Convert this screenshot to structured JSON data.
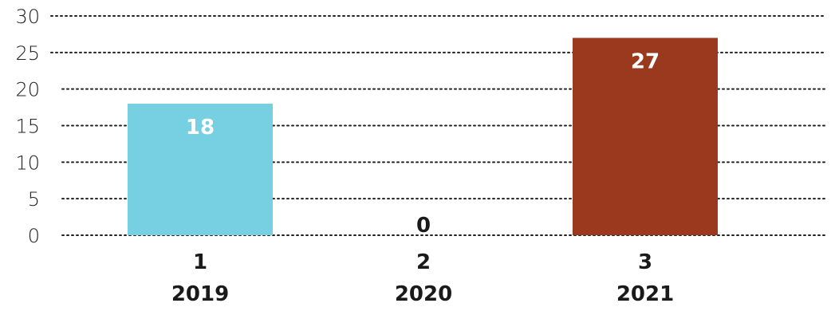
{
  "chart_data": {
    "type": "bar",
    "categories": [
      {
        "index": "1",
        "year": "2019"
      },
      {
        "index": "2",
        "year": "2020"
      },
      {
        "index": "3",
        "year": "2021"
      }
    ],
    "values": [
      18,
      0,
      27
    ],
    "value_labels": [
      "18",
      "0",
      "27"
    ],
    "colors": [
      "#76D0E1",
      "#FFFFFF",
      "#9A391D"
    ],
    "label_colors": [
      "#FFFFFF",
      "#1A1A1A",
      "#FFFFFF"
    ],
    "ylim": [
      0,
      30
    ],
    "yticks": [
      "0",
      "5",
      "10",
      "15",
      "20",
      "25",
      "30"
    ],
    "ytick_values": [
      0,
      5,
      10,
      15,
      20,
      25,
      30
    ],
    "grid": true,
    "title": "",
    "xlabel": "",
    "ylabel": ""
  }
}
